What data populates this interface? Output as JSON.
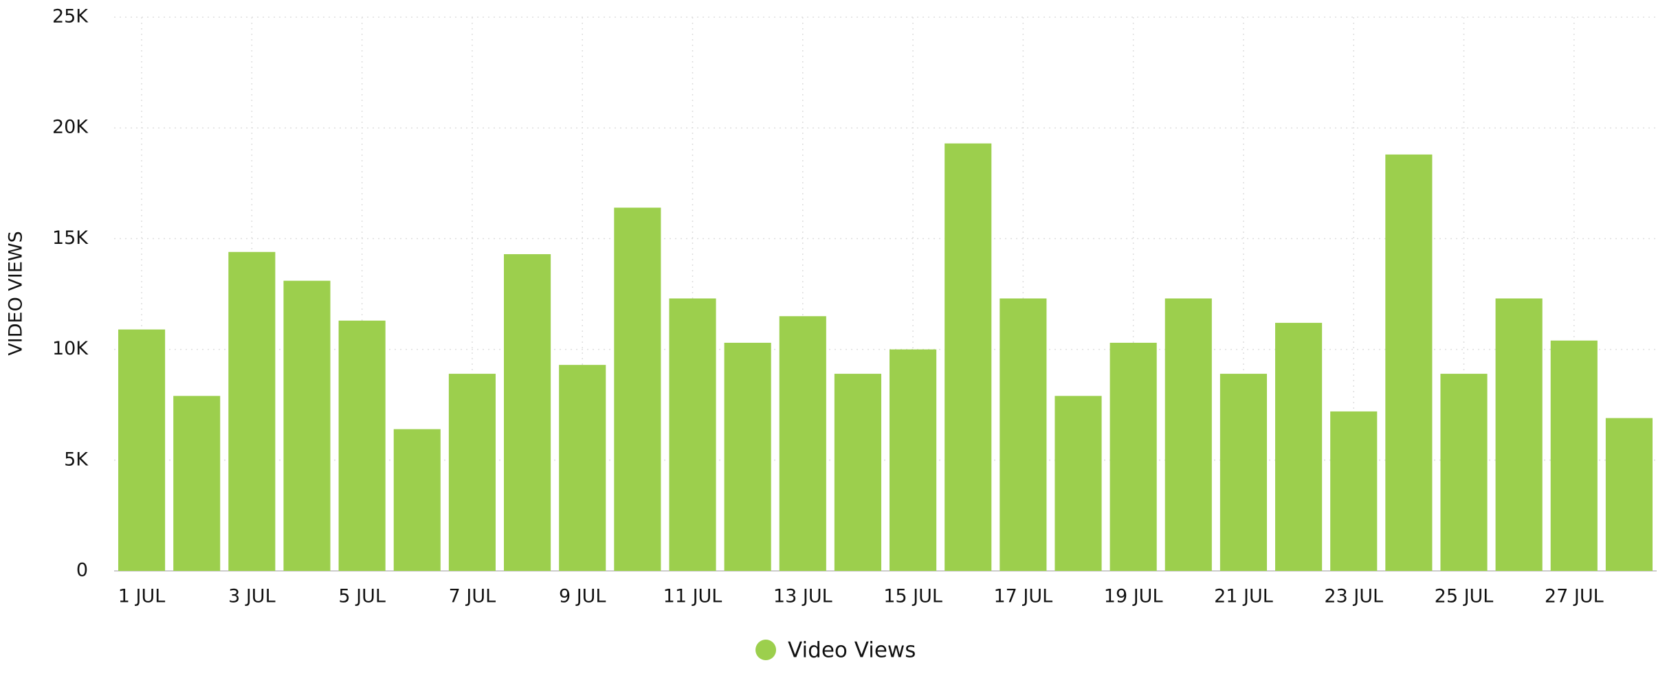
{
  "chart_data": {
    "type": "bar",
    "y_label": "VIDEO VIEWS",
    "categories": [
      "1 JUL",
      null,
      "3 JUL",
      null,
      "5 JUL",
      null,
      "7 JUL",
      null,
      "9 JUL",
      null,
      "11 JUL",
      null,
      "13 JUL",
      null,
      "15 JUL",
      null,
      "17 JUL",
      null,
      "19 JUL",
      null,
      "21 JUL",
      null,
      "23 JUL",
      null,
      "25 JUL",
      null,
      "27 JUL",
      null
    ],
    "series": [
      {
        "name": "Video Views",
        "color": "#9ccf4d",
        "values": [
          10900,
          7900,
          14400,
          13100,
          11300,
          6400,
          8900,
          14300,
          9300,
          16400,
          12300,
          10300,
          11500,
          8900,
          10000,
          19300,
          12300,
          7900,
          10300,
          12300,
          8900,
          11200,
          7200,
          18800,
          8900,
          12300,
          10400,
          6900
        ]
      }
    ],
    "ylim": [
      0,
      25000
    ],
    "yticks": [
      0,
      {
        "value": 5000,
        "label": "5K"
      },
      {
        "value": 10000,
        "label": "10K"
      },
      {
        "value": 15000,
        "label": "15K"
      },
      {
        "value": 20000,
        "label": "20K"
      },
      {
        "value": 25000,
        "label": "25K"
      }
    ],
    "grid": true,
    "legend": "bottom"
  }
}
